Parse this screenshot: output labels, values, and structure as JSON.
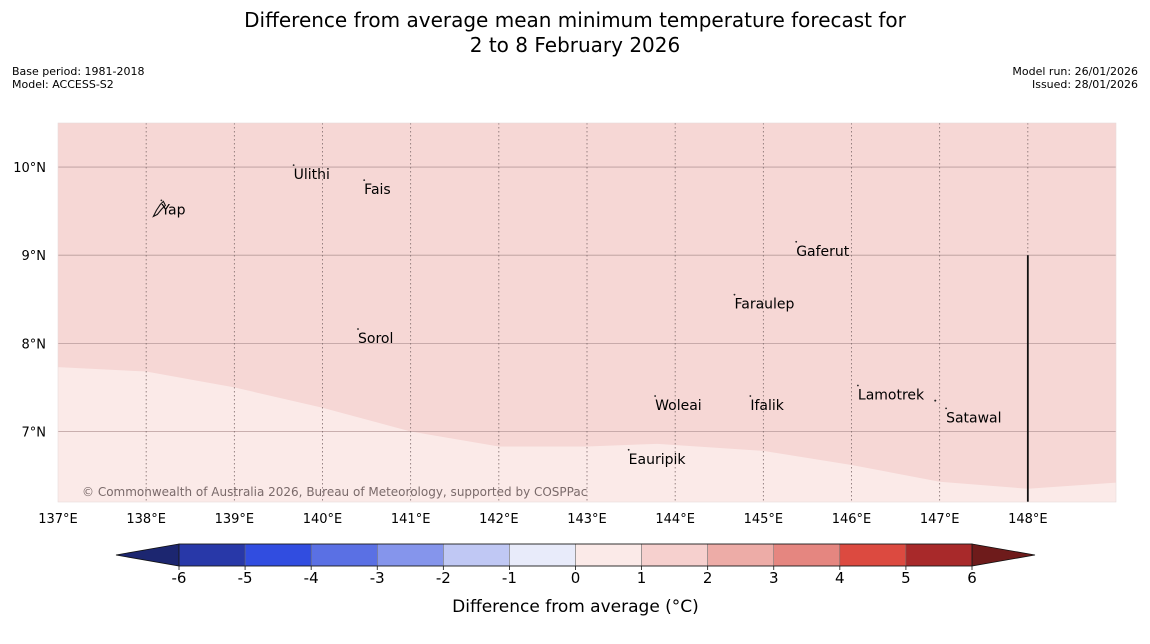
{
  "title": {
    "line1": "Difference from average mean minimum temperature forecast for",
    "line2": "2 to 8 February 2026"
  },
  "meta_left": {
    "base_period": "Base period: 1981-2018",
    "model": "Model: ACCESS-S2"
  },
  "meta_right": {
    "model_run": "Model run: 26/01/2026",
    "issued": "Issued: 28/01/2026"
  },
  "map": {
    "lon_range": [
      137,
      149
    ],
    "lat_range": [
      6.2,
      10.5
    ],
    "lon_ticks": [
      {
        "value": 137,
        "label": "137°E"
      },
      {
        "value": 138,
        "label": "138°E"
      },
      {
        "value": 139,
        "label": "139°E"
      },
      {
        "value": 140,
        "label": "140°E"
      },
      {
        "value": 141,
        "label": "141°E"
      },
      {
        "value": 142,
        "label": "142°E"
      },
      {
        "value": 143,
        "label": "143°E"
      },
      {
        "value": 144,
        "label": "144°E"
      },
      {
        "value": 145,
        "label": "145°E"
      },
      {
        "value": 146,
        "label": "146°E"
      },
      {
        "value": 147,
        "label": "147°E"
      },
      {
        "value": 148,
        "label": "148°E"
      }
    ],
    "lat_ticks": [
      {
        "value": 10,
        "label": "10°N"
      },
      {
        "value": 9,
        "label": "9°N"
      },
      {
        "value": 8,
        "label": "8°N"
      },
      {
        "value": 7,
        "label": "7°N"
      }
    ],
    "places": [
      {
        "name": "Yap",
        "lon": 138.15,
        "lat": 9.52
      },
      {
        "name": "Ulithi",
        "lon": 139.65,
        "lat": 9.92
      },
      {
        "name": "Fais",
        "lon": 140.45,
        "lat": 9.75
      },
      {
        "name": "Gaferut",
        "lon": 145.35,
        "lat": 9.05
      },
      {
        "name": "Faraulep",
        "lon": 144.65,
        "lat": 8.45
      },
      {
        "name": "Sorol",
        "lon": 140.38,
        "lat": 8.06
      },
      {
        "name": "Woleai",
        "lon": 143.75,
        "lat": 7.3
      },
      {
        "name": "Ifalik",
        "lon": 144.83,
        "lat": 7.3
      },
      {
        "name": "Lamotrek",
        "lon": 146.05,
        "lat": 7.42
      },
      {
        "name": "Satawal",
        "lon": 147.05,
        "lat": 7.16
      },
      {
        "name": "Eauripik",
        "lon": 143.45,
        "lat": 6.69
      }
    ],
    "boundary_lat_by_lon": [
      [
        137.0,
        7.73
      ],
      [
        138.0,
        7.68
      ],
      [
        139.0,
        7.5
      ],
      [
        140.0,
        7.27
      ],
      [
        141.0,
        7.0
      ],
      [
        142.0,
        6.83
      ],
      [
        143.0,
        6.83
      ],
      [
        143.8,
        6.86
      ],
      [
        145.0,
        6.78
      ],
      [
        146.0,
        6.62
      ],
      [
        147.0,
        6.43
      ],
      [
        148.0,
        6.35
      ],
      [
        149.0,
        6.42
      ]
    ],
    "meridian_lon": 148,
    "meridian_lat_top": 9.0,
    "region_colors": {
      "north": "#f6d7d5",
      "south": "#fbeae8"
    },
    "copyright": "© Commonwealth of Australia 2026, Bureau of Meteorology, supported by COSPPac"
  },
  "colorbar": {
    "label": "Difference from average (°C)",
    "ticks": [
      "-6",
      "-5",
      "-4",
      "-3",
      "-2",
      "-1",
      "0",
      "1",
      "2",
      "3",
      "4",
      "5",
      "6"
    ],
    "colors": [
      "#2838a8",
      "#314de0",
      "#5a70e4",
      "#8595ec",
      "#c0c8f4",
      "#e8ebfa",
      "#fbeae8",
      "#f6d0ce",
      "#edaca7",
      "#e58680",
      "#dc4a40",
      "#a8292a"
    ],
    "under_color": "#1c2670",
    "over_color": "#6e1b1b"
  }
}
